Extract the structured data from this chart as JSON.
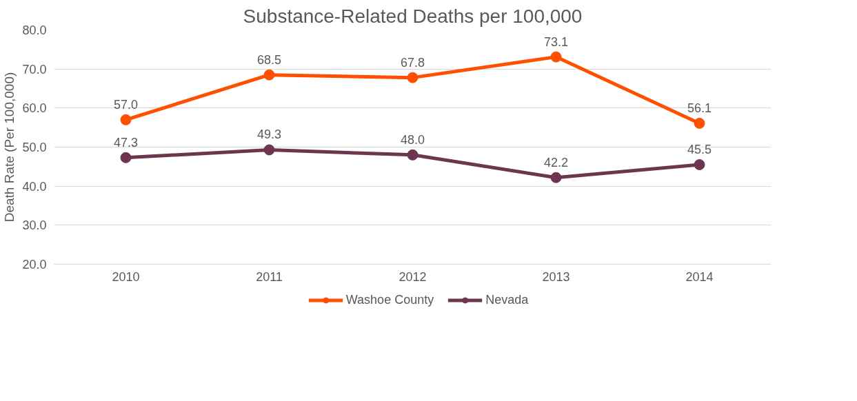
{
  "chart_data": {
    "type": "line",
    "title": "Substance-Related Deaths per 100,000",
    "ylabel": "Death Rate (Per 100,000)",
    "categories": [
      "2010",
      "2011",
      "2012",
      "2013",
      "2014"
    ],
    "series": [
      {
        "name": "Washoe County",
        "color": "#fe5000",
        "values": [
          57.0,
          68.5,
          67.8,
          73.1,
          56.1
        ],
        "value_labels": [
          "57.0",
          "68.5",
          "67.8",
          "73.1",
          "56.1"
        ]
      },
      {
        "name": "Nevada",
        "color": "#6e3550",
        "values": [
          47.3,
          49.3,
          48.0,
          42.2,
          45.5
        ],
        "value_labels": [
          "47.3",
          "49.3",
          "48.0",
          "42.2",
          "45.5"
        ]
      }
    ],
    "ylim": [
      20,
      80
    ],
    "yticks": [
      {
        "value": 20,
        "label": "20.0"
      },
      {
        "value": 30,
        "label": "30.0"
      },
      {
        "value": 40,
        "label": "40.0"
      },
      {
        "value": 50,
        "label": "50.0"
      },
      {
        "value": 60,
        "label": "60.0"
      },
      {
        "value": 70,
        "label": "70.0"
      },
      {
        "value": 80,
        "label": "80.0"
      }
    ],
    "grid": "y",
    "legend": "bottom",
    "marker": "circle",
    "line_style": "solid"
  }
}
